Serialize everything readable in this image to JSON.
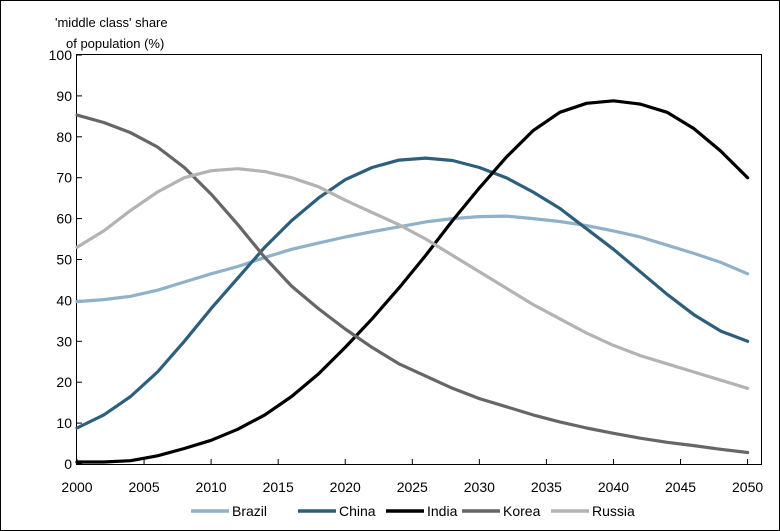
{
  "chart_data": {
    "type": "line",
    "title": "",
    "xlabel": "",
    "ylabel_lines": [
      "'middle class' share",
      "of population (%)"
    ],
    "xlim": [
      2000,
      2051
    ],
    "ylim": [
      0,
      100
    ],
    "x_ticks": [
      2000,
      2005,
      2010,
      2015,
      2020,
      2025,
      2030,
      2035,
      2040,
      2045,
      2050
    ],
    "y_ticks": [
      0,
      10,
      20,
      30,
      40,
      50,
      60,
      70,
      80,
      90,
      100
    ],
    "grid": false,
    "legend_position": "bottom",
    "x": [
      2000,
      2002,
      2004,
      2006,
      2008,
      2010,
      2012,
      2014,
      2016,
      2018,
      2020,
      2022,
      2024,
      2026,
      2028,
      2030,
      2032,
      2034,
      2036,
      2038,
      2040,
      2042,
      2044,
      2046,
      2048,
      2050
    ],
    "series": [
      {
        "name": "Brazil",
        "color": "#8fb1c9",
        "values": [
          39.7,
          40.2,
          41,
          42.5,
          44.5,
          46.5,
          48.3,
          50.5,
          52.5,
          54,
          55.5,
          56.8,
          58,
          59.2,
          60,
          60.5,
          60.6,
          60,
          59.3,
          58.3,
          57,
          55.5,
          53.5,
          51.5,
          49.3,
          46.5
        ]
      },
      {
        "name": "China",
        "color": "#2d5f7d",
        "values": [
          8.8,
          12,
          16.5,
          22.5,
          30,
          38,
          45.5,
          53,
          59.5,
          65,
          69.5,
          72.5,
          74.3,
          74.8,
          74.2,
          72.5,
          70,
          66.5,
          62.5,
          57.5,
          52.5,
          47,
          41.5,
          36.5,
          32.5,
          30
        ]
      },
      {
        "name": "India",
        "color": "#000000",
        "values": [
          0.5,
          0.5,
          0.8,
          2,
          3.8,
          5.8,
          8.5,
          12,
          16.5,
          22,
          28.5,
          35.5,
          43,
          51,
          59.5,
          67.5,
          75,
          81.5,
          86,
          88.2,
          88.8,
          88,
          86,
          82,
          76.5,
          70
        ]
      },
      {
        "name": "Korea",
        "color": "#666666",
        "values": [
          85.3,
          83.5,
          81,
          77.5,
          72.5,
          66,
          58.5,
          50.5,
          43.5,
          38,
          33,
          28.5,
          24.5,
          21.5,
          18.5,
          16,
          14,
          12,
          10.3,
          8.8,
          7.5,
          6.3,
          5.3,
          4.5,
          3.6,
          2.8
        ]
      },
      {
        "name": "Russia",
        "color": "#b3b3b3",
        "values": [
          53,
          57,
          62,
          66.5,
          70,
          71.7,
          72.2,
          71.5,
          70,
          67.8,
          64.5,
          61.5,
          58.5,
          55,
          51,
          47,
          43,
          39,
          35.5,
          32,
          29,
          26.5,
          24.5,
          22.5,
          20.5,
          18.5
        ]
      }
    ]
  }
}
